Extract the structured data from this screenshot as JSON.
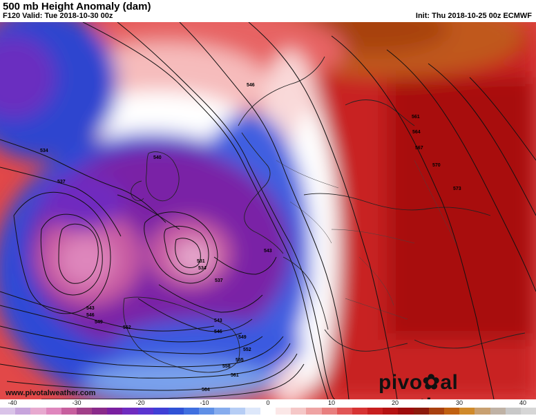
{
  "header": {
    "title": "500 mb Height Anomaly (dam)",
    "valid": "F120 Valid: Tue 2018-10-30 00z",
    "init": "Init: Thu 2018-10-25 00z ECMWF"
  },
  "map": {
    "contour_labels": [
      {
        "text": "546"
      },
      {
        "text": "534"
      },
      {
        "text": "537"
      },
      {
        "text": "540"
      },
      {
        "text": "543"
      },
      {
        "text": "531"
      },
      {
        "text": "534"
      },
      {
        "text": "537"
      },
      {
        "text": "543"
      },
      {
        "text": "546"
      },
      {
        "text": "549"
      },
      {
        "text": "552"
      },
      {
        "text": "543"
      },
      {
        "text": "546"
      },
      {
        "text": "549"
      },
      {
        "text": "552"
      },
      {
        "text": "555"
      },
      {
        "text": "558"
      },
      {
        "text": "561"
      },
      {
        "text": "564"
      },
      {
        "text": "561"
      },
      {
        "text": "564"
      },
      {
        "text": "567"
      },
      {
        "text": "570"
      },
      {
        "text": "573"
      }
    ]
  },
  "footer": {
    "website": "www.pivotalweather.com",
    "brand_left": "pivo",
    "brand_right": "al weather"
  },
  "colorbar": {
    "ticks": [
      "-40",
      "-30",
      "-20",
      "-10",
      "0",
      "10",
      "20",
      "30",
      "40"
    ],
    "colors": [
      "#d9c3e8",
      "#c7a4dc",
      "#e7a9cf",
      "#df86bd",
      "#c75f9e",
      "#a13f88",
      "#8a2a8a",
      "#7a1fa0",
      "#6f2bbf",
      "#5a34d0",
      "#3f3fd6",
      "#2f52d6",
      "#3f6fe0",
      "#5f8fe6",
      "#86acee",
      "#b6cdf5",
      "#dde7fa",
      "#ffffff",
      "#fbe7e7",
      "#f5c7c7",
      "#efa3a3",
      "#e87f7f",
      "#e15555",
      "#d73333",
      "#c81e1e",
      "#b51212",
      "#9e0c0c",
      "#8c1a0c",
      "#a8400f",
      "#c06010",
      "#d08a2a",
      "#c8a070",
      "#bfb2a5",
      "#c8c8c8",
      "#d6d6d6"
    ]
  }
}
